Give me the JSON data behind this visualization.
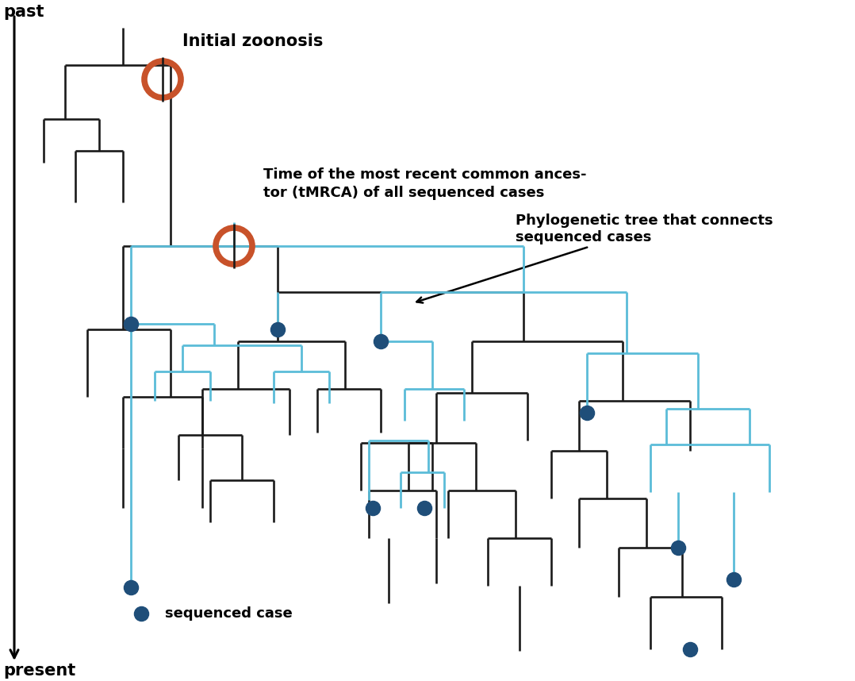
{
  "bg_color": "#ffffff",
  "bc": "#1a1a1a",
  "bl": "#5bbcd8",
  "dc": "#1f4e79",
  "cc": "#c8522a",
  "label_past": "past",
  "label_present": "present",
  "label_zoonosis": "Initial zoonosis",
  "label_tmrca": "Time of the most recent common ances-\ntor (tMRCA) of all sequenced cases",
  "label_phylo": "Phylogenetic tree that connects\nsequenced cases",
  "label_seq": "sequenced case",
  "figsize": [
    10.78,
    8.58
  ],
  "dpi": 100
}
